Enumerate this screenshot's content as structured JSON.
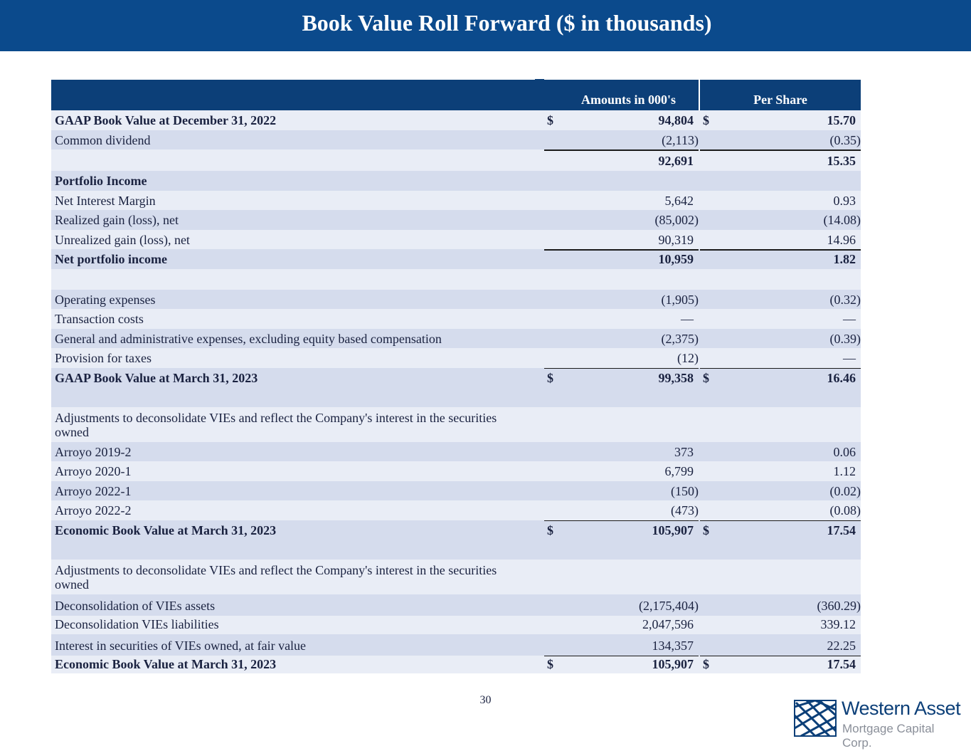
{
  "header": {
    "title": "Book Value Roll Forward ($ in thousands)"
  },
  "table": {
    "columns": {
      "amounts": "Amounts in 000's",
      "per_share": "Per Share"
    },
    "rows": [
      {
        "label": "GAAP Book Value at December 31, 2022",
        "d1": "$",
        "amount": "94,804",
        "d2": "$",
        "per_share": "15.70"
      },
      {
        "label": "Common dividend",
        "amount": "(2,113)",
        "per_share": "(0.35)"
      },
      {
        "label": "",
        "amount": "92,691",
        "per_share": "15.35"
      },
      {
        "label": "Portfolio Income",
        "amount": "",
        "per_share": ""
      },
      {
        "label": "Net Interest Margin",
        "amount": "5,642",
        "per_share": "0.93"
      },
      {
        "label": "Realized gain (loss), net",
        "amount": "(85,002)",
        "per_share": "(14.08)"
      },
      {
        "label": "Unrealized gain (loss), net",
        "amount": "90,319",
        "per_share": "14.96"
      },
      {
        "label": "Net portfolio income",
        "amount": "10,959",
        "per_share": "1.82"
      },
      {
        "label": "",
        "amount": "",
        "per_share": ""
      },
      {
        "label": "Operating expenses",
        "amount": "(1,905)",
        "per_share": "(0.32)"
      },
      {
        "label": "Transaction costs",
        "amount": "—",
        "per_share": "—"
      },
      {
        "label": "General and administrative expenses, excluding equity based compensation",
        "amount": "(2,375)",
        "per_share": "(0.39)"
      },
      {
        "label": "Provision for taxes",
        "amount": "(12)",
        "per_share": "—"
      },
      {
        "label": "GAAP Book Value at March 31, 2023",
        "d1": "$",
        "amount": "99,358",
        "d2": "$",
        "per_share": "16.46"
      },
      {
        "label": "Adjustments to deconsolidate VIEs and reflect the Company's interest in the securities owned"
      },
      {
        "label": "Arroyo 2019-2",
        "amount": "373",
        "per_share": "0.06"
      },
      {
        "label": "Arroyo 2020-1",
        "amount": "6,799",
        "per_share": "1.12"
      },
      {
        "label": "Arroyo 2022-1",
        "amount": "(150)",
        "per_share": "(0.02)"
      },
      {
        "label": "Arroyo 2022-2",
        "amount": "(473)",
        "per_share": "(0.08)"
      },
      {
        "label": "Economic Book Value at March 31, 2023",
        "d1": "$",
        "amount": "105,907",
        "d2": "$",
        "per_share": "17.54"
      },
      {
        "label": "Adjustments to deconsolidate VIEs and reflect the Company's interest in the securities owned"
      },
      {
        "label": "Deconsolidation of VIEs assets",
        "amount": "(2,175,404)",
        "per_share": "(360.29)"
      },
      {
        "label": "Deconsolidation VIEs liabilities",
        "amount": "2,047,596",
        "per_share": "339.12"
      },
      {
        "label": "Interest in securities of VIEs owned, at fair value",
        "amount": "134,357",
        "per_share": "22.25"
      },
      {
        "label": "Economic Book Value at March 31, 2023",
        "d1": "$",
        "amount": "105,907",
        "d2": "$",
        "per_share": "17.54"
      }
    ]
  },
  "page_number": "30",
  "logo": {
    "line1": "Western Asset",
    "line2": "Mortgage Capital Corp."
  },
  "colors": {
    "header_bg": "#0b4a8c",
    "table_header_bg": "#0c3f78",
    "row_light": "#e9edf6",
    "row_dark": "#d5dced",
    "brand": "#0c3f78"
  }
}
